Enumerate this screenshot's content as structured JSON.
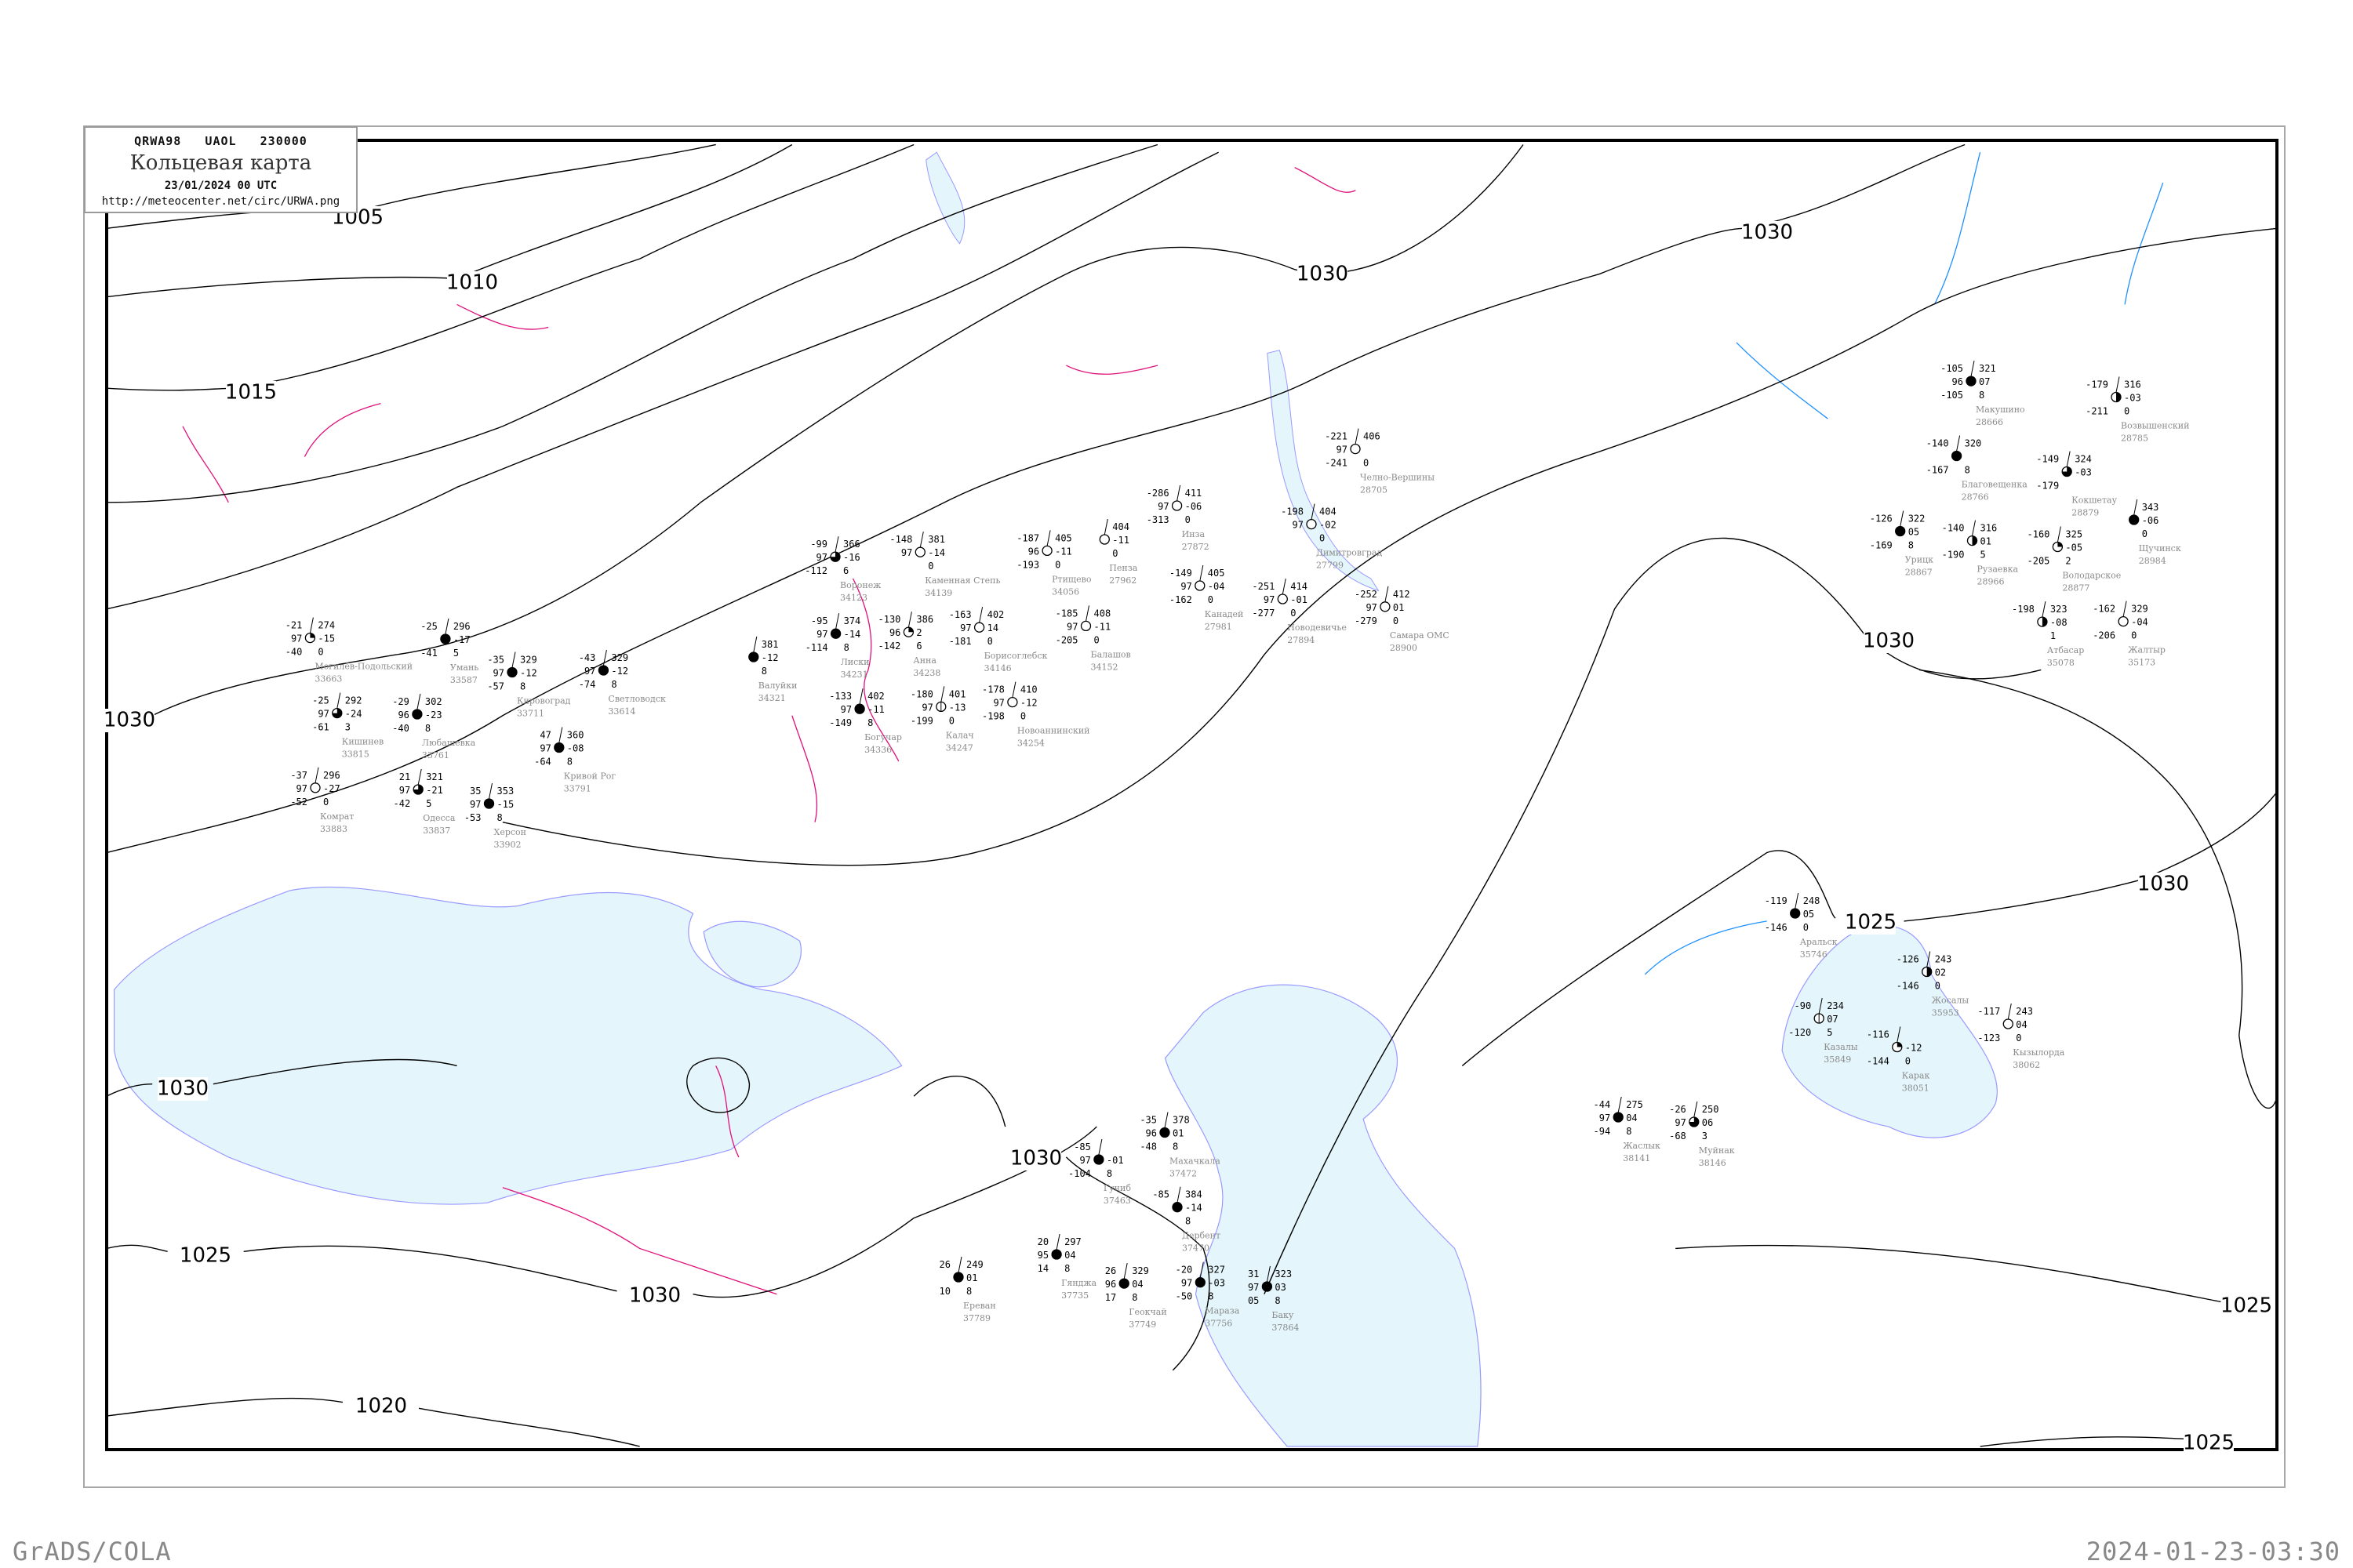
{
  "header": {
    "code": "QRWA98   UAOL   230000",
    "title": "Кольцевая карта",
    "datetime": "23/01/2024 00 UTC",
    "url": "http://meteocenter.net/circ/URWA.png"
  },
  "footer": {
    "left": "GrADS/COLA",
    "right": "2024-01-23-03:30"
  },
  "colors": {
    "sea": "#e4f6fc",
    "coast": "#9a9aff",
    "isobar": "#000000",
    "isotherm": "#e0107a",
    "river": "#1e90ff",
    "station_name": "#8a8a8a",
    "snow_marker": "#3399ff",
    "rain_marker": "#00cc33",
    "fog_marker": "#ffff99"
  },
  "isobar_labels": [
    "1005",
    "1010",
    "1015",
    "1030",
    "1030",
    "1030",
    "1030",
    "1030",
    "1025",
    "1030",
    "1025",
    "1030",
    "1020",
    "1030",
    "1025",
    "1025"
  ],
  "stations": [
    {
      "name": "Лиски",
      "id": "34231",
      "t": "-95",
      "vis": "97",
      "td": "-114",
      "p": "374",
      "tend": "-14",
      "extra": "8",
      "cloud": "full"
    },
    {
      "name": "Воронеж",
      "id": "34123",
      "t": "-99",
      "vis": "97",
      "td": "-112",
      "p": "366",
      "tend": "-16",
      "extra": "6",
      "cloud": "three"
    },
    {
      "name": "Анна",
      "id": "34238",
      "t": "-130",
      "vis": "96",
      "td": "-142",
      "p": "386",
      "tend": "2",
      "extra": "6",
      "cloud": "quarter"
    },
    {
      "name": "Каменная Степь",
      "id": "34139",
      "t": "-148",
      "vis": "97",
      "td": "",
      "p": "381",
      "tend": "-14",
      "extra": "0",
      "cloud": "empty"
    },
    {
      "name": "Калач",
      "id": "34247",
      "t": "-180",
      "vis": "97",
      "td": "-199",
      "p": "401",
      "tend": "-13",
      "extra": "0",
      "cloud": "bar"
    },
    {
      "name": "Богучар",
      "id": "34336",
      "t": "-133",
      "vis": "97",
      "td": "-149",
      "p": "402",
      "tend": "-11",
      "extra": "8",
      "cloud": "full"
    },
    {
      "name": "Валуйки",
      "id": "34321",
      "t": "",
      "vis": "",
      "td": "",
      "p": "381",
      "tend": "-12",
      "extra": "8",
      "cloud": "full"
    },
    {
      "name": "Балашов",
      "id": "34152",
      "t": "-185",
      "vis": "97",
      "td": "-205",
      "p": "408",
      "tend": "-11",
      "extra": "0",
      "cloud": "empty"
    },
    {
      "name": "Ртищево",
      "id": "34056",
      "t": "-187",
      "vis": "96",
      "td": "-193",
      "p": "405",
      "tend": "-11",
      "extra": "0",
      "cloud": "empty"
    },
    {
      "name": "Борисоглебск",
      "id": "34146",
      "t": "-163",
      "vis": "97",
      "td": "-181",
      "p": "402",
      "tend": "14",
      "extra": "0",
      "cloud": "empty"
    },
    {
      "name": "Новоаннинский",
      "id": "34254",
      "t": "-178",
      "vis": "97",
      "td": "-198",
      "p": "410",
      "tend": "-12",
      "extra": "0",
      "cloud": "empty"
    },
    {
      "name": "Пенза",
      "id": "27962",
      "t": "",
      "vis": "",
      "td": "",
      "p": "404",
      "tend": "-11",
      "extra": "0",
      "cloud": "empty"
    },
    {
      "name": "Инза",
      "id": "27872",
      "t": "-286",
      "vis": "97",
      "td": "-313",
      "p": "411",
      "tend": "-06",
      "extra": "0",
      "cloud": "empty"
    },
    {
      "name": "Канадей",
      "id": "27981",
      "t": "-149",
      "vis": "97",
      "td": "-162",
      "p": "405",
      "tend": "-04",
      "extra": "0",
      "cloud": "empty"
    },
    {
      "name": "Самара ОМС",
      "id": "28900",
      "t": "-252",
      "vis": "97",
      "td": "-279",
      "p": "412",
      "tend": "01",
      "extra": "0",
      "cloud": "empty"
    },
    {
      "name": "Новодевичье",
      "id": "27894",
      "t": "-251",
      "vis": "97",
      "td": "-277",
      "p": "414",
      "tend": "-01",
      "extra": "0",
      "cloud": "empty"
    },
    {
      "name": "Димитровград",
      "id": "27799",
      "t": "-198",
      "vis": "97",
      "td": "",
      "p": "404",
      "tend": "-02",
      "extra": "0",
      "cloud": "empty"
    },
    {
      "name": "Челно-Вершины",
      "id": "28705",
      "t": "-221",
      "vis": "97",
      "td": "-241",
      "p": "406",
      "tend": "",
      "extra": "0",
      "cloud": "empty"
    },
    {
      "name": "Аральск",
      "id": "35746",
      "t": "-119",
      "vis": "",
      "td": "-146",
      "p": "248",
      "tend": "05",
      "extra": "0",
      "cloud": "full"
    },
    {
      "name": "Казалы",
      "id": "35849",
      "t": "-90",
      "vis": "",
      "td": "-120",
      "p": "234",
      "tend": "07",
      "extra": "5",
      "cloud": "bar"
    },
    {
      "name": "Карак",
      "id": "38051",
      "t": "-116",
      "vis": "",
      "td": "-144",
      "p": "",
      "tend": "-12",
      "extra": "0",
      "cloud": "quarter"
    },
    {
      "name": "Жосалы",
      "id": "35953",
      "t": "-126",
      "vis": "",
      "td": "-146",
      "p": "243",
      "tend": "02",
      "extra": "0",
      "cloud": "half"
    },
    {
      "name": "Кызылорда",
      "id": "38062",
      "t": "-117",
      "vis": "",
      "td": "-123",
      "p": "243",
      "tend": "04",
      "extra": "0",
      "cloud": "empty"
    },
    {
      "name": "Жаслык",
      "id": "38141",
      "t": "-44",
      "vis": "97",
      "td": "-94",
      "p": "275",
      "tend": "04",
      "extra": "8",
      "cloud": "full"
    },
    {
      "name": "Муйнак",
      "id": "38146",
      "t": "-26",
      "vis": "97",
      "td": "-68",
      "p": "250",
      "tend": "06",
      "extra": "3",
      "cloud": "three"
    },
    {
      "name": "Махачкала",
      "id": "37472",
      "t": "-35",
      "vis": "96",
      "td": "-48",
      "p": "378",
      "tend": "01",
      "extra": "8",
      "cloud": "full"
    },
    {
      "name": "Гуниб",
      "id": "37463",
      "t": "-85",
      "vis": "97",
      "td": "-104",
      "p": "",
      "tend": "-01",
      "extra": "8",
      "cloud": "full"
    },
    {
      "name": "Дербент",
      "id": "37470",
      "t": "-85",
      "vis": "",
      "td": "",
      "p": "384",
      "tend": "-14",
      "extra": "8",
      "cloud": "full"
    },
    {
      "name": "Баку",
      "id": "37864",
      "t": "31",
      "vis": "97",
      "td": "05",
      "p": "323",
      "tend": "03",
      "extra": "8",
      "cloud": "full"
    },
    {
      "name": "Гянджа",
      "id": "37735",
      "t": "20",
      "vis": "95",
      "td": "14",
      "p": "297",
      "tend": "04",
      "extra": "8",
      "cloud": "full"
    },
    {
      "name": "Ереван",
      "id": "37789",
      "t": "26",
      "vis": "",
      "td": "10",
      "p": "249",
      "tend": "01",
      "extra": "8",
      "cloud": "full"
    },
    {
      "name": "Геокчай",
      "id": "37749",
      "t": "26",
      "vis": "96",
      "td": "17",
      "p": "329",
      "tend": "04",
      "extra": "8",
      "cloud": "full"
    },
    {
      "name": "Мараза",
      "id": "37756",
      "t": "-20",
      "vis": "97",
      "td": "-50",
      "p": "327",
      "tend": "-03",
      "extra": "8",
      "cloud": "full"
    },
    {
      "name": "Одесса",
      "id": "33837",
      "t": "21",
      "vis": "97",
      "td": "-42",
      "p": "321",
      "tend": "-21",
      "extra": "5",
      "cloud": "three"
    },
    {
      "name": "Херсон",
      "id": "33902",
      "t": "35",
      "vis": "97",
      "td": "-53",
      "p": "353",
      "tend": "-15",
      "extra": "8",
      "cloud": "full"
    },
    {
      "name": "Кишинев",
      "id": "33815",
      "t": "-25",
      "vis": "97",
      "td": "-61",
      "p": "292",
      "tend": "-24",
      "extra": "3",
      "cloud": "three"
    },
    {
      "name": "Любашевка",
      "id": "33761",
      "t": "-29",
      "vis": "96",
      "td": "-40",
      "p": "302",
      "tend": "-23",
      "extra": "8",
      "cloud": "full"
    },
    {
      "name": "Умань",
      "id": "33587",
      "t": "-25",
      "vis": "",
      "td": "-41",
      "p": "296",
      "tend": "-17",
      "extra": "5",
      "cloud": "full"
    },
    {
      "name": "Кировоград",
      "id": "33711",
      "t": "-35",
      "vis": "97",
      "td": "-57",
      "p": "329",
      "tend": "-12",
      "extra": "8",
      "cloud": "full"
    },
    {
      "name": "Кривой Рог",
      "id": "33791",
      "t": "47",
      "vis": "97",
      "td": "-64",
      "p": "360",
      "tend": "-08",
      "extra": "8",
      "cloud": "full"
    },
    {
      "name": "Комрат",
      "id": "33883",
      "t": "-37",
      "vis": "97",
      "td": "-52",
      "p": "296",
      "tend": "-27",
      "extra": "0",
      "cloud": "empty"
    },
    {
      "name": "Светловодск",
      "id": "33614",
      "t": "-43",
      "vis": "97",
      "td": "-74",
      "p": "329",
      "tend": "-12",
      "extra": "8",
      "cloud": "full"
    },
    {
      "name": "Могилёв-Подольский",
      "id": "33663",
      "t": "-21",
      "vis": "97",
      "td": "-40",
      "p": "274",
      "tend": "-15",
      "extra": "0",
      "cloud": "quarter"
    },
    {
      "name": "Макушино",
      "id": "28666",
      "t": "-105",
      "vis": "96",
      "td": "-105",
      "p": "321",
      "tend": "07",
      "extra": "8",
      "cloud": "full"
    },
    {
      "name": "Благовещенка",
      "id": "28766",
      "t": "-140",
      "vis": "",
      "td": "-167",
      "p": "320",
      "tend": "",
      "extra": "8",
      "cloud": "full"
    },
    {
      "name": "Володарское",
      "id": "28877",
      "t": "-160",
      "vis": "",
      "td": "-205",
      "p": "325",
      "tend": "-05",
      "extra": "2",
      "cloud": "quarter"
    },
    {
      "name": "Кокшетау",
      "id": "28879",
      "t": "-149",
      "vis": "",
      "td": "-179",
      "p": "324",
      "tend": "-03",
      "extra": "",
      "cloud": "three"
    },
    {
      "name": "Щучинск",
      "id": "28984",
      "t": "",
      "vis": "",
      "td": "",
      "p": "343",
      "tend": "-06",
      "extra": "0",
      "cloud": "full"
    },
    {
      "name": "Возвышенский",
      "id": "28785",
      "t": "-179",
      "vis": "",
      "td": "-211",
      "p": "316",
      "tend": "-03",
      "extra": "0",
      "cloud": "half"
    },
    {
      "name": "Урицк",
      "id": "28867",
      "t": "-126",
      "vis": "",
      "td": "-169",
      "p": "322",
      "tend": "05",
      "extra": "8",
      "cloud": "full"
    },
    {
      "name": "Рузаевка",
      "id": "28966",
      "t": "-140",
      "vis": "",
      "td": "-190",
      "p": "316",
      "tend": "01",
      "extra": "5",
      "cloud": "half"
    },
    {
      "name": "Атбасар",
      "id": "35078",
      "t": "-198",
      "vis": "",
      "td": "",
      "p": "323",
      "tend": "-08",
      "extra": "1",
      "cloud": "half"
    },
    {
      "name": "Жалтыр",
      "id": "35173",
      "t": "-162",
      "vis": "",
      "td": "-206",
      "p": "329",
      "tend": "-04",
      "extra": "0",
      "cloud": "empty"
    }
  ]
}
